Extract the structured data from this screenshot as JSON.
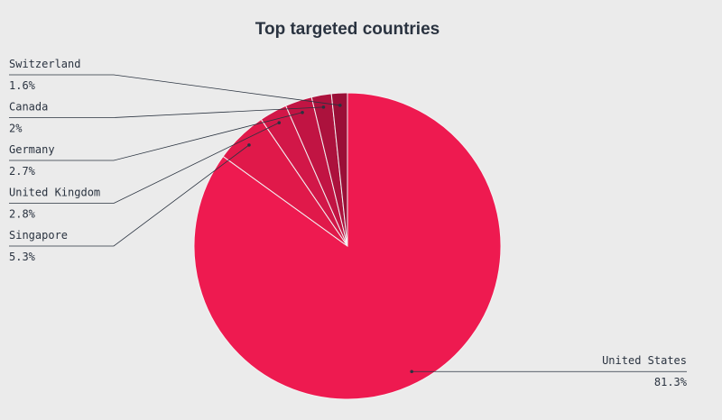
{
  "chart_data": {
    "type": "pie",
    "title": "Top targeted countries",
    "categories": [
      "United States",
      "Singapore",
      "United Kingdom",
      "Germany",
      "Canada",
      "Switzerland"
    ],
    "values": [
      81.3,
      5.3,
      2.8,
      2.7,
      2,
      1.6
    ],
    "value_labels": [
      "81.3%",
      "5.3%",
      "2.8%",
      "2.7%",
      "2%",
      "1.6%"
    ],
    "colors": [
      "#ee1a50",
      "#e0194a",
      "#d21748",
      "#c11443",
      "#ac123d",
      "#9a0f37"
    ]
  }
}
